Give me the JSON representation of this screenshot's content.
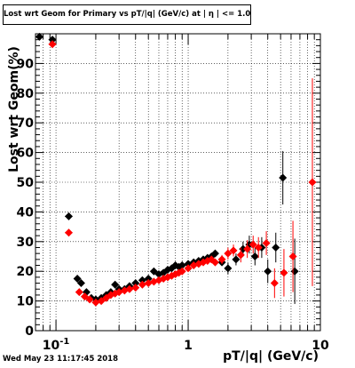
{
  "chart_data": {
    "type": "scatter",
    "title": "Lost wrt Geom for Primary vs pT/|q| (GeV/c) at | η | <= 1.0",
    "xlabel": "pT/|q| (GeV/c)",
    "ylabel": "Lost wrt Geom(%)",
    "xscale": "log",
    "xlim": [
      0.07,
      10
    ],
    "ylim": [
      0,
      100
    ],
    "grid": true,
    "x_tick_labels": [
      {
        "value": 0.1,
        "label": "10",
        "sup": "-1"
      },
      {
        "value": 1,
        "label": "1",
        "sup": ""
      },
      {
        "value": 10,
        "label": "10",
        "sup": ""
      }
    ],
    "y_ticks": [
      0,
      10,
      20,
      30,
      40,
      50,
      60,
      70,
      80,
      90
    ],
    "series": [
      {
        "color": "#000000",
        "points": [
          {
            "x": 0.075,
            "y": 99,
            "xerr": 0.003
          },
          {
            "x": 0.094,
            "y": 98,
            "xerr": 0.006
          },
          {
            "x": 0.125,
            "y": 38.5,
            "xerr": 0.008
          },
          {
            "x": 0.145,
            "y": 17.5
          },
          {
            "x": 0.155,
            "y": 16
          },
          {
            "x": 0.17,
            "y": 13
          },
          {
            "x": 0.185,
            "y": 11
          },
          {
            "x": 0.2,
            "y": 10.5
          },
          {
            "x": 0.22,
            "y": 11
          },
          {
            "x": 0.24,
            "y": 12
          },
          {
            "x": 0.26,
            "y": 13
          },
          {
            "x": 0.28,
            "y": 15.5
          },
          {
            "x": 0.3,
            "y": 14
          },
          {
            "x": 0.33,
            "y": 14
          },
          {
            "x": 0.36,
            "y": 15
          },
          {
            "x": 0.4,
            "y": 16
          },
          {
            "x": 0.45,
            "y": 17
          },
          {
            "x": 0.5,
            "y": 17.5
          },
          {
            "x": 0.55,
            "y": 20
          },
          {
            "x": 0.6,
            "y": 19
          },
          {
            "x": 0.65,
            "y": 19.5
          },
          {
            "x": 0.7,
            "y": 20.5
          },
          {
            "x": 0.75,
            "y": 21
          },
          {
            "x": 0.8,
            "y": 22
          },
          {
            "x": 0.85,
            "y": 21.5
          },
          {
            "x": 0.9,
            "y": 22
          },
          {
            "x": 1,
            "y": 22.5
          },
          {
            "x": 1.1,
            "y": 23
          },
          {
            "x": 1.2,
            "y": 23.5
          },
          {
            "x": 1.3,
            "y": 24
          },
          {
            "x": 1.4,
            "y": 24.5
          },
          {
            "x": 1.5,
            "y": 25
          },
          {
            "x": 1.6,
            "y": 26
          },
          {
            "x": 1.8,
            "y": 23
          },
          {
            "x": 2.0,
            "y": 21,
            "yerr": 2
          },
          {
            "x": 2.3,
            "y": 24,
            "yerr": 2
          },
          {
            "x": 2.6,
            "y": 27.5,
            "yerr": 2.5
          },
          {
            "x": 2.9,
            "y": 29,
            "yerr": 3
          },
          {
            "x": 3.2,
            "y": 25,
            "yerr": 3
          },
          {
            "x": 3.6,
            "y": 28,
            "yerr": 3.5
          },
          {
            "x": 4.0,
            "y": 20,
            "yerr": 4
          },
          {
            "x": 4.6,
            "y": 28,
            "yerr": 5
          },
          {
            "x": 5.2,
            "y": 51.5,
            "yerr": 9
          },
          {
            "x": 6.4,
            "y": 20,
            "yerr": 11
          }
        ]
      },
      {
        "color": "#ff0000",
        "points": [
          {
            "x": 0.094,
            "y": 96.5,
            "xerr": 0.006
          },
          {
            "x": 0.125,
            "y": 33,
            "xerr": 0.008
          },
          {
            "x": 0.15,
            "y": 13
          },
          {
            "x": 0.165,
            "y": 11.5
          },
          {
            "x": 0.18,
            "y": 10.5
          },
          {
            "x": 0.2,
            "y": 9.5
          },
          {
            "x": 0.22,
            "y": 10
          },
          {
            "x": 0.24,
            "y": 11
          },
          {
            "x": 0.26,
            "y": 12
          },
          {
            "x": 0.28,
            "y": 12.5
          },
          {
            "x": 0.3,
            "y": 13
          },
          {
            "x": 0.33,
            "y": 13.5
          },
          {
            "x": 0.36,
            "y": 14
          },
          {
            "x": 0.4,
            "y": 14.5
          },
          {
            "x": 0.45,
            "y": 15.5
          },
          {
            "x": 0.5,
            "y": 16
          },
          {
            "x": 0.55,
            "y": 16.5
          },
          {
            "x": 0.6,
            "y": 17
          },
          {
            "x": 0.65,
            "y": 17.5
          },
          {
            "x": 0.7,
            "y": 18
          },
          {
            "x": 0.75,
            "y": 18.5
          },
          {
            "x": 0.8,
            "y": 19
          },
          {
            "x": 0.85,
            "y": 19.5
          },
          {
            "x": 0.9,
            "y": 20
          },
          {
            "x": 1,
            "y": 21
          },
          {
            "x": 1.1,
            "y": 22
          },
          {
            "x": 1.2,
            "y": 22.5
          },
          {
            "x": 1.3,
            "y": 23
          },
          {
            "x": 1.4,
            "y": 23.5
          },
          {
            "x": 1.5,
            "y": 24
          },
          {
            "x": 1.6,
            "y": 23
          },
          {
            "x": 1.8,
            "y": 24,
            "yerr": 1.5
          },
          {
            "x": 2.0,
            "y": 26,
            "yerr": 2
          },
          {
            "x": 2.2,
            "y": 27,
            "yerr": 2
          },
          {
            "x": 2.5,
            "y": 25.5,
            "yerr": 2.5
          },
          {
            "x": 2.8,
            "y": 27.5,
            "yerr": 3
          },
          {
            "x": 3.1,
            "y": 29,
            "yerr": 3
          },
          {
            "x": 3.4,
            "y": 28,
            "yerr": 3.5
          },
          {
            "x": 3.9,
            "y": 29.5,
            "yerr": 4
          },
          {
            "x": 4.5,
            "y": 16,
            "yerr": 5
          },
          {
            "x": 5.3,
            "y": 19.5,
            "yerr": 8
          },
          {
            "x": 6.2,
            "y": 25,
            "yerr": 12
          },
          {
            "x": 8.7,
            "y": 50,
            "yerr": 35,
            "xerr": 0.5
          }
        ]
      }
    ]
  },
  "footer": {
    "datestamp": "Wed May 23 11:17:45 2018"
  }
}
